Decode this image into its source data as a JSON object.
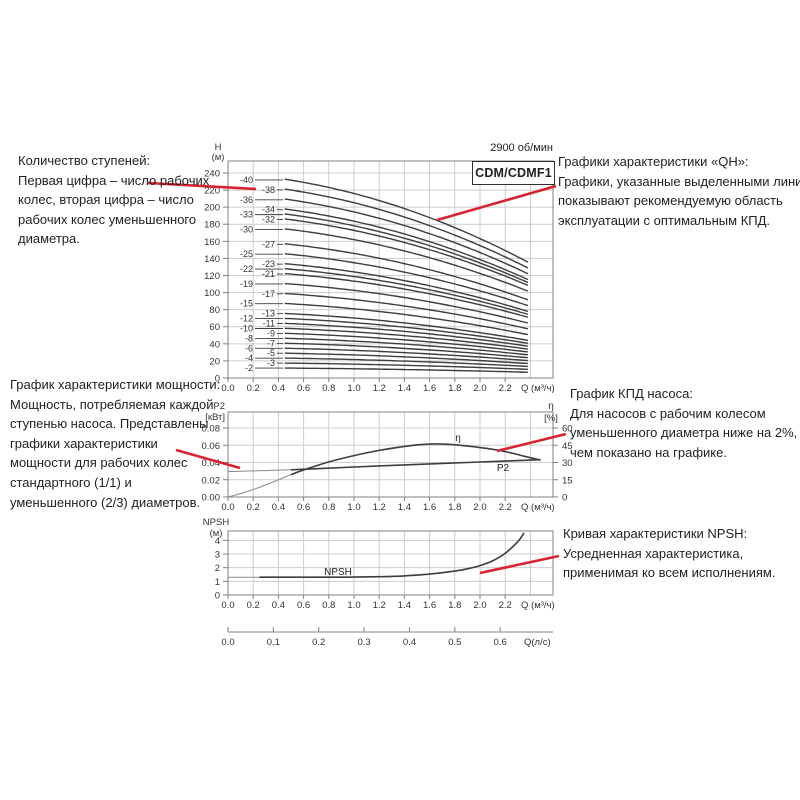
{
  "page_background": "#ffffff",
  "colors": {
    "accent_red": "#d9232e",
    "curve": "#3d3d3d",
    "thin_curve": "#8a8a8a",
    "grid": "#cccccc",
    "frame": "#808080",
    "text": "#1f1f1f",
    "tick_text": "#333333"
  },
  "chart_header": {
    "rpm": "2900 об/мин",
    "model": "CDM/CDMF1"
  },
  "annotations": {
    "stages_note": {
      "lines": [
        "Количество ступеней:",
        "Первая цифра – число рабочих",
        "колес, вторая цифра – число",
        "рабочих колес уменьшенного",
        "диаметра."
      ]
    },
    "qh_note": {
      "lines": [
        "Графики характеристики «QH»:",
        "Графики, указанные выделенными линиями,",
        "показывают рекомендуемую область",
        "эксплуатации с оптимальным КПД."
      ]
    },
    "power_note": {
      "lines": [
        "График характеристики мощности:",
        "Мощность, потребляемая каждой",
        "ступенью насоса. Представлены",
        "графики характеристики",
        "мощности для рабочих колес",
        "стандартного (1/1) и",
        "уменьшенного (2/3) диаметров."
      ]
    },
    "efficiency_note": {
      "lines": [
        "График КПД насоса:",
        "Для насосов с рабочим колесом",
        "уменьшенного диаметра ниже на 2%,",
        "чем показано на графике."
      ]
    },
    "npsh_note": {
      "lines": [
        "Кривая характеристики NPSH:",
        "Усредненная характеристика,",
        "применимая ко всем исполнениям."
      ]
    }
  },
  "chart_data": [
    {
      "id": "qh",
      "type": "line",
      "title": "2900 об/мин",
      "model": "CDM/CDMF1",
      "ylabel_lines": [
        "H",
        "(м)"
      ],
      "xlabel": "Q (м³/ч)",
      "y_ticks": [
        "0",
        "20",
        "40",
        "60",
        "80",
        "100",
        "120",
        "140",
        "160",
        "180",
        "200",
        "220",
        "240"
      ],
      "x_ticks": [
        "0.0",
        "0.2",
        "0.4",
        "0.6",
        "0.8",
        "1.0",
        "1.2",
        "1.4",
        "1.6",
        "1.8",
        "2.0",
        "2.2"
      ],
      "xlim": [
        0,
        2.58
      ],
      "ylim": [
        0,
        254
      ],
      "grid": true,
      "stage_curves": {
        "labels": [
          "-40",
          "-38",
          "-36",
          "-34",
          "-33",
          "-32",
          "-30",
          "-27",
          "-25",
          "-23",
          "-22",
          "-21",
          "-19",
          "-17",
          "-15",
          "-13",
          "-12",
          "-11",
          "-10",
          "-9",
          "-8",
          "-7",
          "-6",
          "-5",
          "-4",
          "-3",
          "-2"
        ],
        "head_per_stage_m": 6,
        "q_start": 0.45,
        "q_end": 2.38,
        "droop_coeffs": {
          "linear": 0.04,
          "quadratic": 0.06
        },
        "formula": "H(Q) = 6·n·(1 − 0.04·Q − 0.06·Q²)"
      }
    },
    {
      "id": "power_efficiency",
      "type": "line",
      "ylabel_left_lines": [
        "P2",
        "[кВт]"
      ],
      "ylabel_right_lines": [
        "η",
        "[%]"
      ],
      "xlabel": "Q (м³/ч)",
      "y_ticks_left": [
        "0.00",
        "0.02",
        "0.04",
        "0.06",
        "0.08"
      ],
      "y_ticks_right": [
        "0",
        "15",
        "30",
        "45",
        "60"
      ],
      "x_ticks": [
        "0.0",
        "0.2",
        "0.4",
        "0.6",
        "0.8",
        "1.0",
        "1.2",
        "1.4",
        "1.6",
        "1.8",
        "2.0",
        "2.2"
      ],
      "ylim_left": [
        0,
        0.0986
      ],
      "ylim_right": [
        0,
        74
      ],
      "grid": true,
      "series": [
        {
          "name": "η",
          "axis": "right",
          "unit": "%",
          "x": [
            0,
            0.1,
            0.2,
            0.3,
            0.4,
            0.5,
            0.6,
            0.8,
            1.0,
            1.2,
            1.4,
            1.6,
            1.75,
            1.9,
            2.0,
            2.1,
            2.2,
            2.35,
            2.48
          ],
          "y": [
            0,
            3,
            6.5,
            10.5,
            15,
            19.5,
            23.5,
            30.5,
            36,
            40.5,
            44,
            46,
            45.8,
            44.3,
            43,
            41.5,
            39.5,
            35.5,
            32
          ]
        },
        {
          "name": "P2",
          "axis": "left",
          "unit": "кВт",
          "x": [
            0,
            0.25,
            0.5,
            0.75,
            1.0,
            1.25,
            1.5,
            1.75,
            2.0,
            2.25,
            2.48
          ],
          "y": [
            0.0295,
            0.0305,
            0.0315,
            0.0332,
            0.0348,
            0.0363,
            0.0378,
            0.0392,
            0.0406,
            0.042,
            0.0433
          ]
        }
      ]
    },
    {
      "id": "npsh",
      "type": "line",
      "ylabel_lines": [
        "NPSH",
        "(м)"
      ],
      "xlabel": "Q (м³/ч)",
      "xlabel_secondary": "Q(л/с)",
      "y_ticks": [
        "0",
        "1",
        "2",
        "3",
        "4"
      ],
      "x_ticks": [
        "0.0",
        "0.2",
        "0.4",
        "0.6",
        "0.8",
        "1.0",
        "1.2",
        "1.4",
        "1.6",
        "1.8",
        "2.0",
        "2.2"
      ],
      "x_ticks_secondary": [
        "0.0",
        "0.1",
        "0.2",
        "0.3",
        "0.4",
        "0.5",
        "0.6"
      ],
      "ylim": [
        0,
        4.67
      ],
      "grid": true,
      "series": [
        {
          "name": "NPSH",
          "unit": "м",
          "x": [
            0,
            0.25,
            0.5,
            0.8,
            1.0,
            1.2,
            1.4,
            1.6,
            1.8,
            1.9,
            2.0,
            2.1,
            2.2,
            2.3,
            2.35
          ],
          "y": [
            1.3,
            1.3,
            1.3,
            1.3,
            1.31,
            1.34,
            1.4,
            1.53,
            1.75,
            1.92,
            2.15,
            2.5,
            3.05,
            3.9,
            4.55
          ]
        }
      ]
    }
  ]
}
